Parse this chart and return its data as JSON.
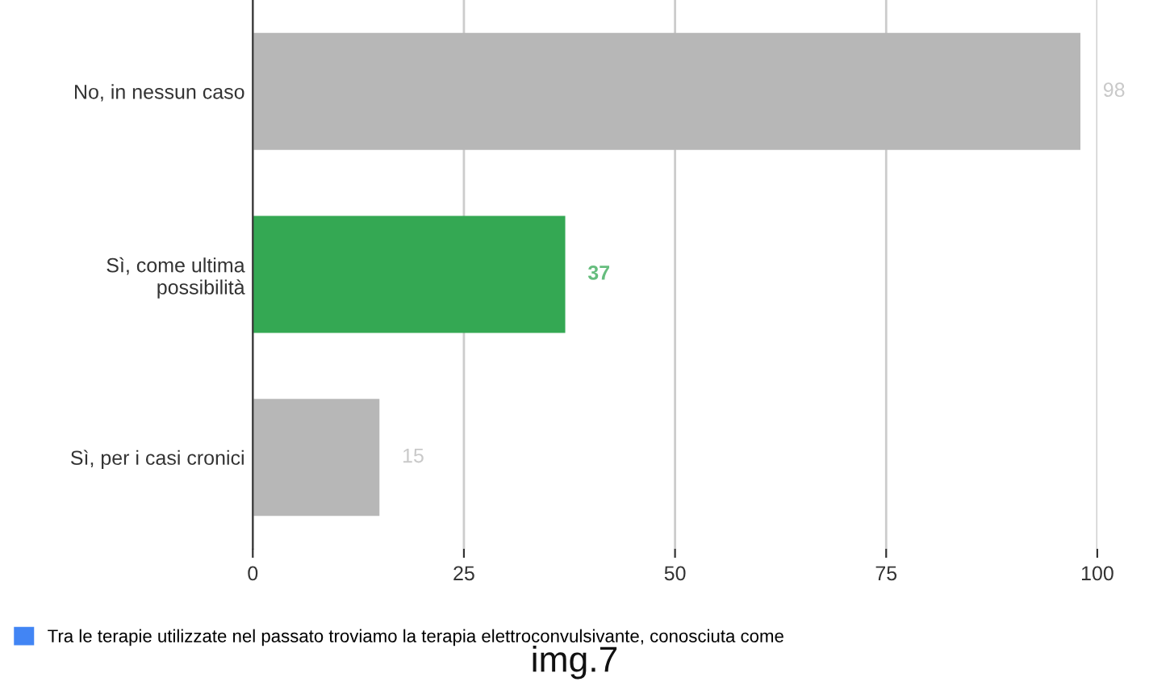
{
  "chart_data": {
    "type": "bar",
    "orientation": "horizontal",
    "categories": [
      "No, in nessun caso",
      "Sì, come ultima\npossibilità",
      "Sì, per i casi cronici"
    ],
    "series": [
      {
        "name": "Tra le terapie utilizzate nel passato troviamo la terapia elettroconvulsivante, conosciuta come",
        "values": [
          98,
          37,
          15
        ]
      }
    ],
    "colors": [
      "#b7b7b7",
      "#34a853",
      "#b7b7b7"
    ],
    "data_labels": true,
    "xlim": [
      0,
      100
    ],
    "xticks": [
      0,
      25,
      50,
      75,
      100
    ],
    "grid": "x",
    "legend": "bottom",
    "annotations": [
      "img.7"
    ]
  }
}
